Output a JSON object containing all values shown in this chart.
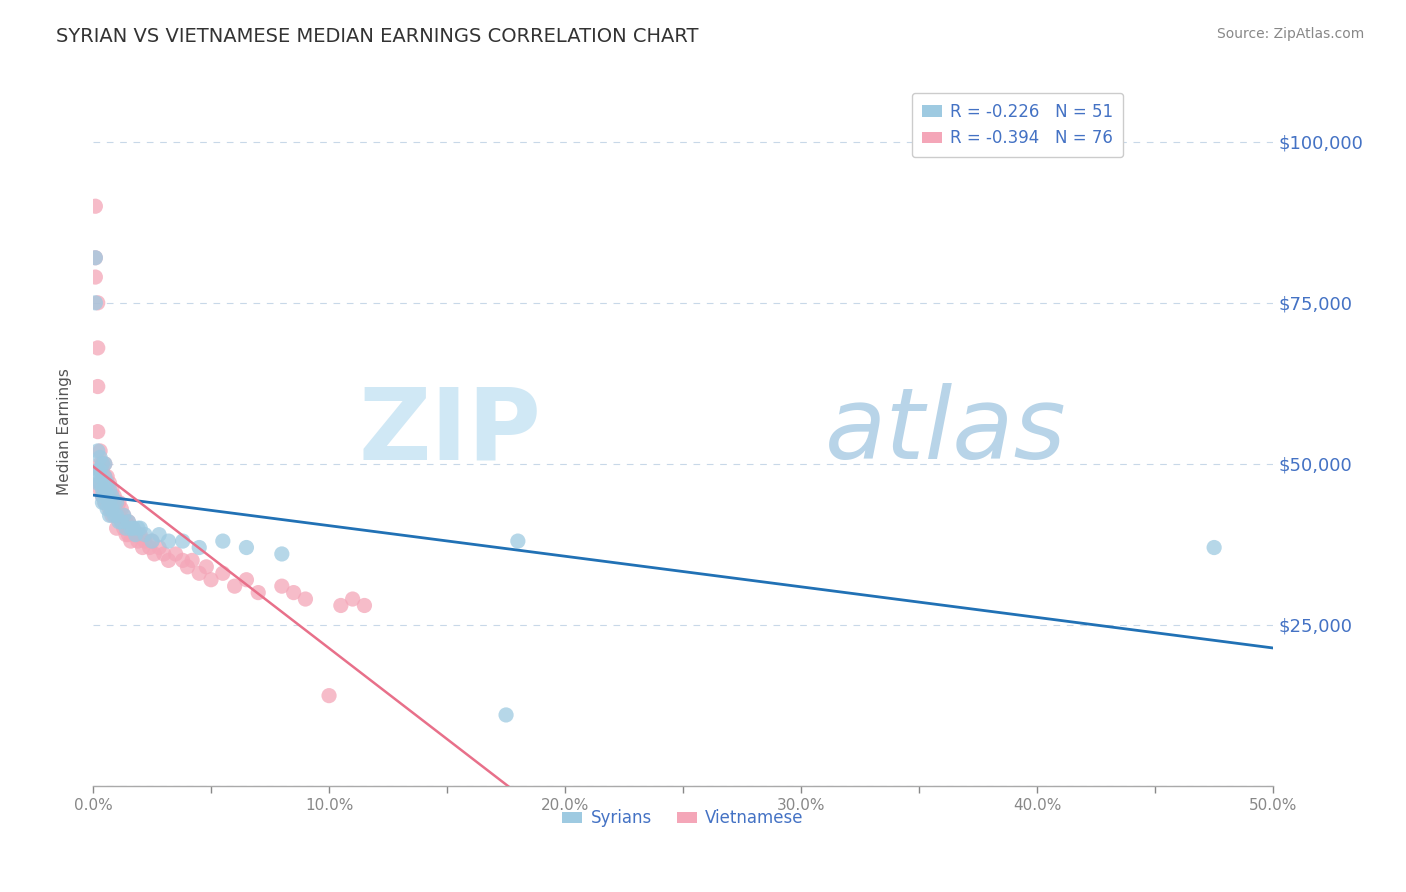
{
  "title": "SYRIAN VS VIETNAMESE MEDIAN EARNINGS CORRELATION CHART",
  "source": "Source: ZipAtlas.com",
  "ylabel": "Median Earnings",
  "xlim": [
    0.0,
    0.5
  ],
  "ylim": [
    0,
    110000
  ],
  "yticks": [
    0,
    25000,
    50000,
    75000,
    100000
  ],
  "ytick_labels": [
    "",
    "$25,000",
    "$50,000",
    "$75,000",
    "$100,000"
  ],
  "xticks": [
    0.0,
    0.05,
    0.1,
    0.15,
    0.2,
    0.25,
    0.3,
    0.35,
    0.4,
    0.45,
    0.5
  ],
  "xtick_labels": [
    "0.0%",
    "",
    "10.0%",
    "",
    "20.0%",
    "",
    "30.0%",
    "",
    "40.0%",
    "",
    "50.0%"
  ],
  "color_syrian": "#9ecae1",
  "color_vietnamese": "#f4a6b8",
  "color_line_syrian": "#2171b5",
  "color_line_vietnamese": "#e8708a",
  "color_title": "#333333",
  "color_tick": "#4472c4",
  "legend_R_syrian": "-0.226",
  "legend_N_syrian": "51",
  "legend_R_vietnamese": "-0.394",
  "legend_N_vietnamese": "76",
  "syrian_scatter_x": [
    0.001,
    0.001,
    0.002,
    0.002,
    0.002,
    0.003,
    0.003,
    0.003,
    0.003,
    0.004,
    0.004,
    0.004,
    0.004,
    0.005,
    0.005,
    0.005,
    0.005,
    0.006,
    0.006,
    0.006,
    0.007,
    0.007,
    0.007,
    0.008,
    0.008,
    0.009,
    0.009,
    0.01,
    0.01,
    0.011,
    0.012,
    0.013,
    0.014,
    0.015,
    0.016,
    0.017,
    0.018,
    0.019,
    0.02,
    0.022,
    0.025,
    0.028,
    0.032,
    0.038,
    0.045,
    0.055,
    0.065,
    0.08,
    0.175,
    0.18,
    0.475
  ],
  "syrian_scatter_y": [
    82000,
    75000,
    52000,
    49000,
    47000,
    51000,
    49000,
    48000,
    47000,
    50000,
    46000,
    45000,
    44000,
    50000,
    48000,
    46000,
    44000,
    47000,
    45000,
    43000,
    46000,
    44000,
    42000,
    45000,
    43000,
    44000,
    42000,
    44000,
    42000,
    41000,
    41000,
    42000,
    40000,
    41000,
    40000,
    40000,
    39000,
    40000,
    40000,
    39000,
    38000,
    39000,
    38000,
    38000,
    37000,
    38000,
    37000,
    36000,
    11000,
    38000,
    37000
  ],
  "vietnamese_scatter_x": [
    0.001,
    0.001,
    0.001,
    0.002,
    0.002,
    0.002,
    0.002,
    0.003,
    0.003,
    0.003,
    0.003,
    0.003,
    0.004,
    0.004,
    0.004,
    0.004,
    0.005,
    0.005,
    0.005,
    0.005,
    0.006,
    0.006,
    0.006,
    0.007,
    0.007,
    0.007,
    0.008,
    0.008,
    0.008,
    0.009,
    0.009,
    0.01,
    0.01,
    0.01,
    0.011,
    0.011,
    0.012,
    0.012,
    0.013,
    0.013,
    0.014,
    0.014,
    0.015,
    0.015,
    0.016,
    0.016,
    0.017,
    0.018,
    0.019,
    0.02,
    0.021,
    0.022,
    0.024,
    0.025,
    0.026,
    0.028,
    0.03,
    0.032,
    0.035,
    0.038,
    0.04,
    0.042,
    0.045,
    0.048,
    0.05,
    0.055,
    0.06,
    0.065,
    0.07,
    0.08,
    0.085,
    0.09,
    0.1,
    0.105,
    0.11,
    0.115
  ],
  "vietnamese_scatter_y": [
    90000,
    82000,
    79000,
    75000,
    68000,
    62000,
    55000,
    52000,
    50000,
    49000,
    47000,
    46000,
    50000,
    49000,
    47000,
    45000,
    50000,
    48000,
    46000,
    44000,
    48000,
    46000,
    44000,
    47000,
    45000,
    43000,
    46000,
    44000,
    42000,
    45000,
    43000,
    44000,
    42000,
    40000,
    44000,
    42000,
    43000,
    41000,
    42000,
    40000,
    41000,
    39000,
    41000,
    39000,
    40000,
    38000,
    40000,
    39000,
    38000,
    39000,
    37000,
    38000,
    37000,
    38000,
    36000,
    37000,
    36000,
    35000,
    36000,
    35000,
    34000,
    35000,
    33000,
    34000,
    32000,
    33000,
    31000,
    32000,
    30000,
    31000,
    30000,
    29000,
    14000,
    28000,
    29000,
    28000
  ],
  "watermark_zip": "ZIP",
  "watermark_atlas": "atlas",
  "watermark_color_zip": "#d0e8f5",
  "watermark_color_atlas": "#b8d4e8",
  "background_color": "#ffffff",
  "grid_color": "#c8d8e8",
  "line_solid_end_x": 0.2,
  "line_dashed_start_x": 0.2,
  "line_end_x": 0.5
}
